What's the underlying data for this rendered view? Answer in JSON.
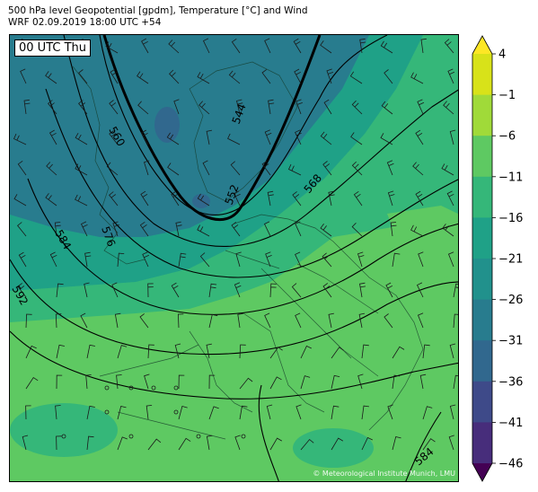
{
  "header": {
    "line1": "500 hPa level Geopotential [gpdm], Temperature [°C] and Wind",
    "line2": "WRF 02.09.2019 18:00 UTC +54"
  },
  "map": {
    "time_label": "00 UTC Thu",
    "credit": "© Meteorological Institute Munich, LMU",
    "contour_labels": [
      "560",
      "544",
      "552",
      "568",
      "576",
      "584",
      "592",
      "584"
    ]
  },
  "colorbar": {
    "ticks": [
      "4",
      "−1",
      "−6",
      "−11",
      "−16",
      "−21",
      "−26",
      "−31",
      "−36",
      "−41",
      "−46"
    ],
    "colors": [
      "#fde725",
      "#d8e219",
      "#a0da39",
      "#5ec962",
      "#35b779",
      "#1fa187",
      "#21918c",
      "#287c8e",
      "#31688e",
      "#3e4a89",
      "#472d7b",
      "#440154"
    ]
  }
}
